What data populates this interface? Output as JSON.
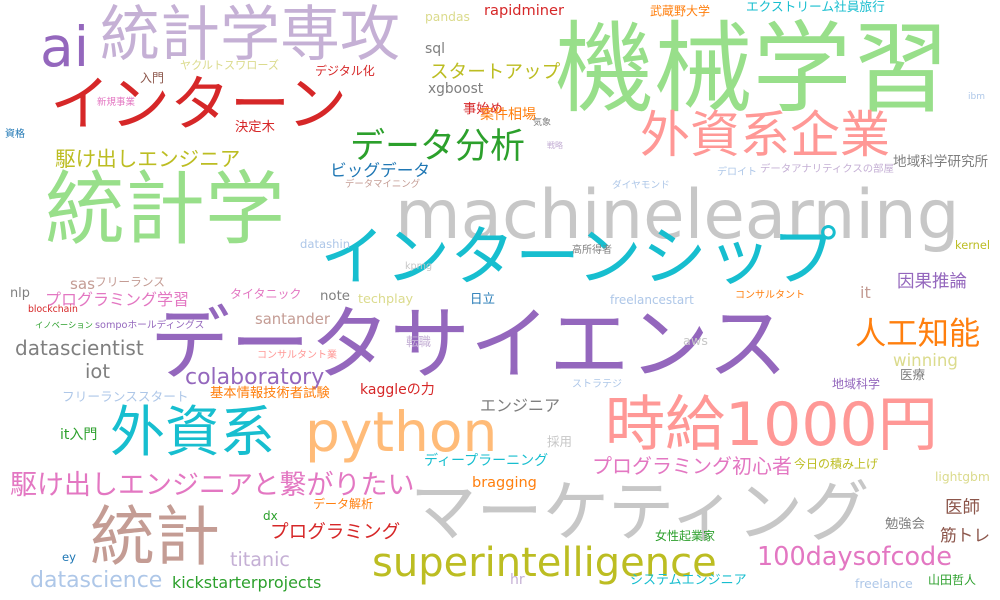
{
  "words": [
    {
      "text": "機械学習",
      "color": "#98df8a"
    },
    {
      "text": "machinelearning",
      "color": "#c7c7c7"
    },
    {
      "text": "データサイエンス",
      "color": "#9467bd"
    },
    {
      "text": "マーケティング",
      "color": "#c7c7c7"
    },
    {
      "text": "統計学",
      "color": "#98df8a"
    },
    {
      "text": "インターンシップ",
      "color": "#17becf"
    },
    {
      "text": "統計学専攻",
      "color": "#c5b0d5"
    },
    {
      "text": "インターン",
      "color": "#d62728"
    },
    {
      "text": "ai",
      "color": "#9467bd"
    },
    {
      "text": "時給1000円",
      "color": "#ff9896"
    },
    {
      "text": "python",
      "color": "#ffbb78"
    },
    {
      "text": "外資系",
      "color": "#17becf"
    },
    {
      "text": "統計",
      "color": "#c49c94"
    },
    {
      "text": "superintelligence",
      "color": "#bcbd22"
    },
    {
      "text": "外資系企業",
      "color": "#ff9896"
    },
    {
      "text": "データ分析",
      "color": "#2ca02c"
    },
    {
      "text": "人工知能",
      "color": "#ff7f0e"
    },
    {
      "text": "駆け出しエンジニアと繋がりたい",
      "color": "#e377c2"
    },
    {
      "text": "100daysofcode",
      "color": "#e377c2"
    },
    {
      "text": "駆け出しエンジニア",
      "color": "#bcbd22"
    },
    {
      "text": "プログラミング初心者",
      "color": "#e377c2"
    },
    {
      "text": "colaboratory",
      "color": "#9467bd"
    },
    {
      "text": "datascience",
      "color": "#aec7e8"
    },
    {
      "text": "kickstarterprojects",
      "color": "#2ca02c"
    },
    {
      "text": "スタートアップ",
      "color": "#bcbd22"
    },
    {
      "text": "ビッグデータ",
      "color": "#1f77b4"
    },
    {
      "text": "rapidminer",
      "color": "#d62728"
    },
    {
      "text": "datascientist",
      "color": "#7f7f7f"
    },
    {
      "text": "プログラミング",
      "color": "#d62728"
    },
    {
      "text": "titanic",
      "color": "#c5b0d5"
    },
    {
      "text": "bragging",
      "color": "#ff7f0e"
    },
    {
      "text": "winning",
      "color": "#dbdb8d"
    },
    {
      "text": "santander",
      "color": "#c49c94"
    },
    {
      "text": "iot",
      "color": "#7f7f7f"
    },
    {
      "text": "エンジニア",
      "color": "#7f7f7f"
    },
    {
      "text": "筋トレ",
      "color": "#8c564b"
    },
    {
      "text": "医師",
      "color": "#8c564b"
    },
    {
      "text": "因果推論",
      "color": "#9467bd"
    },
    {
      "text": "地域科学研究所",
      "color": "#7f7f7f"
    },
    {
      "text": "sas",
      "color": "#c49c94"
    },
    {
      "text": "フリーランス",
      "color": "#c49c94"
    },
    {
      "text": "プログラミング学習",
      "color": "#e377c2"
    },
    {
      "text": "エクストリーム社員旅行",
      "color": "#17becf"
    },
    {
      "text": "武蔵野大学",
      "color": "#ff7f0e"
    },
    {
      "text": "pandas",
      "color": "#dbdb8d"
    },
    {
      "text": "sql",
      "color": "#7f7f7f"
    },
    {
      "text": "ヤクルトスワローズ",
      "color": "#dbdb8d"
    },
    {
      "text": "デジタル化",
      "color": "#d62728"
    },
    {
      "text": "入門",
      "color": "#8c564b"
    },
    {
      "text": "新規事業",
      "color": "#e377c2"
    },
    {
      "text": "xgboost",
      "color": "#7f7f7f"
    },
    {
      "text": "事始め",
      "color": "#d62728"
    },
    {
      "text": "案件相場",
      "color": "#ff7f0e"
    },
    {
      "text": "気象",
      "color": "#7f7f7f"
    },
    {
      "text": "資格",
      "color": "#1f77b4"
    },
    {
      "text": "決定木",
      "color": "#d62728"
    },
    {
      "text": "戦略",
      "color": "#c5b0d5"
    },
    {
      "text": "ibm",
      "color": "#aec7e8"
    },
    {
      "text": "データマイニング",
      "color": "#c49c94"
    },
    {
      "text": "デロイト",
      "color": "#aec7e8"
    },
    {
      "text": "データアナリティクスの部屋",
      "color": "#c5b0d5"
    },
    {
      "text": "ダイヤモンド",
      "color": "#aec7e8"
    },
    {
      "text": "datashin",
      "color": "#aec7e8"
    },
    {
      "text": "高所得者",
      "color": "#7f7f7f"
    },
    {
      "text": "kernel",
      "color": "#bcbd22"
    },
    {
      "text": "kpmg",
      "color": "#c7c7c7"
    },
    {
      "text": "nlp",
      "color": "#7f7f7f"
    },
    {
      "text": "blockchain",
      "color": "#d62728"
    },
    {
      "text": "タイタニック",
      "color": "#e377c2"
    },
    {
      "text": "note",
      "color": "#7f7f7f"
    },
    {
      "text": "techplay",
      "color": "#dbdb8d"
    },
    {
      "text": "日立",
      "color": "#1f77b4"
    },
    {
      "text": "freelancestart",
      "color": "#aec7e8"
    },
    {
      "text": "コンサルタント",
      "color": "#ff7f0e"
    },
    {
      "text": "it",
      "color": "#c49c94"
    },
    {
      "text": "イノベーション",
      "color": "#2ca02c"
    },
    {
      "text": "sompoホールディングス",
      "color": "#9467bd"
    },
    {
      "text": "転職",
      "color": "#c5b0d5"
    },
    {
      "text": "aws",
      "color": "#c7c7c7"
    },
    {
      "text": "コンサルタント業",
      "color": "#ff9896"
    },
    {
      "text": "kaggleの力",
      "color": "#d62728"
    },
    {
      "text": "ストラテジ",
      "color": "#aec7e8"
    },
    {
      "text": "地域科学",
      "color": "#9467bd"
    },
    {
      "text": "医療",
      "color": "#7f7f7f"
    },
    {
      "text": "フリーランススタート",
      "color": "#aec7e8"
    },
    {
      "text": "基本情報技術者試験",
      "color": "#ff7f0e"
    },
    {
      "text": "it入門",
      "color": "#2ca02c"
    },
    {
      "text": "採用",
      "color": "#c7c7c7"
    },
    {
      "text": "ディープラーニング",
      "color": "#17becf"
    },
    {
      "text": "今日の積み上げ",
      "color": "#bcbd22"
    },
    {
      "text": "lightgbm",
      "color": "#dbdb8d"
    },
    {
      "text": "データ解析",
      "color": "#ff7f0e"
    },
    {
      "text": "dx",
      "color": "#2ca02c"
    },
    {
      "text": "女性起業家",
      "color": "#2ca02c"
    },
    {
      "text": "勉強会",
      "color": "#7f7f7f"
    },
    {
      "text": "ey",
      "color": "#1f77b4"
    },
    {
      "text": "hr",
      "color": "#c5b0d5"
    },
    {
      "text": "システムエンジニア",
      "color": "#17becf"
    },
    {
      "text": "freelance",
      "color": "#aec7e8"
    },
    {
      "text": "山田哲人",
      "color": "#2ca02c"
    }
  ]
}
